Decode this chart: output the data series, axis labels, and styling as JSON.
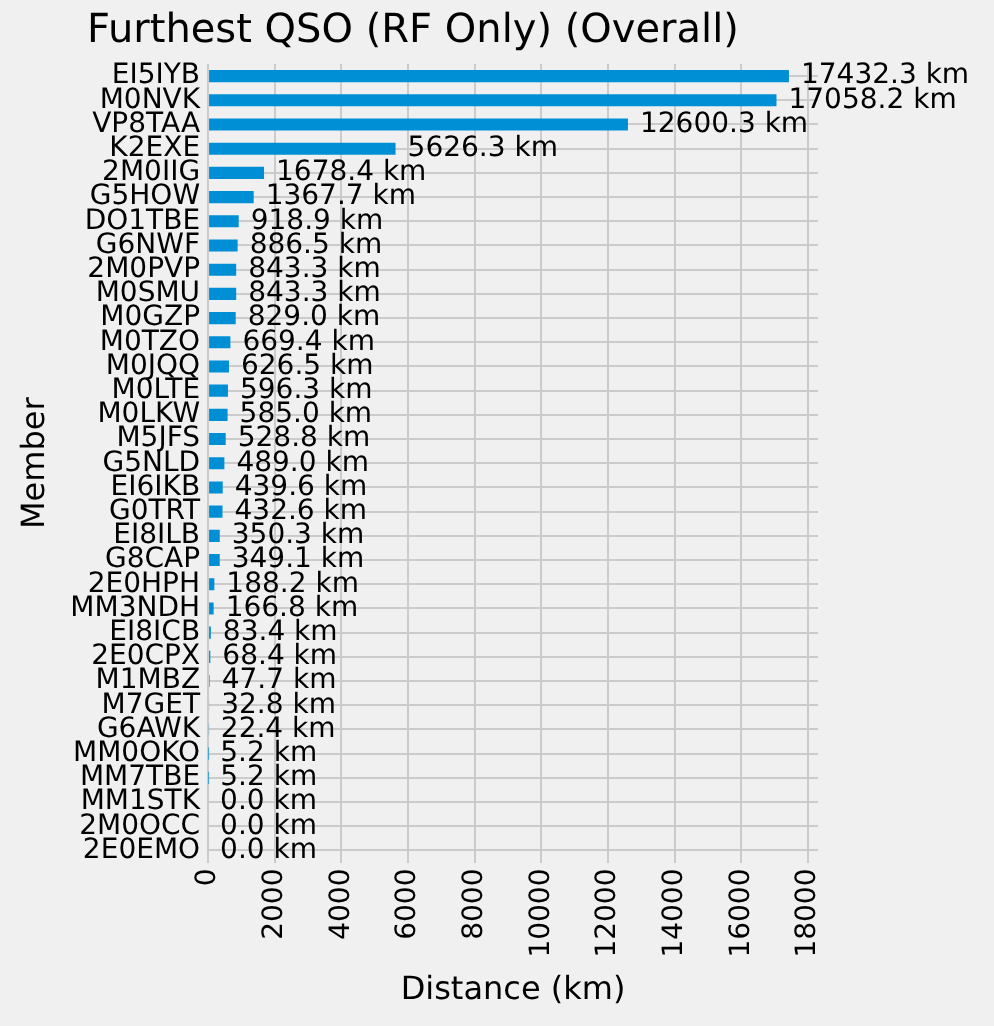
{
  "chart_data": {
    "type": "bar",
    "orientation": "horizontal",
    "title": "Furthest QSO (RF Only) (Overall)",
    "xlabel": "Distance (km)",
    "ylabel": "Member",
    "categories": [
      "EI5IYB",
      "M0NVK",
      "VP8TAA",
      "K2EXE",
      "2M0IIG",
      "G5HOW",
      "DO1TBE",
      "G6NWF",
      "2M0PVP",
      "M0SMU",
      "M0GZP",
      "M0TZO",
      "M0JQQ",
      "M0LTE",
      "M0LKW",
      "M5JFS",
      "G5NLD",
      "EI6IKB",
      "G0TRT",
      "EI8ILB",
      "G8CAP",
      "2E0HPH",
      "MM3NDH",
      "EI8ICB",
      "2E0CPX",
      "M1MBZ",
      "M7GET",
      "G6AWK",
      "MM0OKO",
      "MM7TBE",
      "MM1STK",
      "2M0OCC",
      "2E0EMO"
    ],
    "values": [
      17432.3,
      17058.2,
      12600.3,
      5626.3,
      1678.4,
      1367.7,
      918.9,
      886.5,
      843.3,
      843.3,
      829.0,
      669.4,
      626.5,
      596.3,
      585.0,
      528.8,
      489.0,
      439.6,
      432.6,
      350.3,
      349.1,
      188.2,
      166.8,
      83.4,
      68.4,
      47.7,
      32.8,
      22.4,
      5.2,
      5.2,
      0.0,
      0.0,
      0.0
    ],
    "value_labels": [
      "17432.3 km",
      "17058.2 km",
      "12600.3 km",
      "5626.3 km",
      "1678.4 km",
      "1367.7 km",
      "918.9 km",
      "886.5 km",
      "843.3 km",
      "843.3 km",
      "829.0 km",
      "669.4 km",
      "626.5 km",
      "596.3 km",
      "585.0 km",
      "528.8 km",
      "489.0 km",
      "439.6 km",
      "432.6 km",
      "350.3 km",
      "349.1 km",
      "188.2 km",
      "166.8 km",
      "83.4 km",
      "68.4 km",
      "47.7 km",
      "32.8 km",
      "22.4 km",
      "5.2 km",
      "5.2 km",
      "0.0 km",
      "0.0 km",
      "0.0 km"
    ],
    "color": "#008fd5",
    "xlim": [
      0,
      18304
    ],
    "xticks": [
      0,
      2000,
      4000,
      6000,
      8000,
      10000,
      12000,
      14000,
      16000,
      18000
    ],
    "grid": true,
    "legend": false
  }
}
